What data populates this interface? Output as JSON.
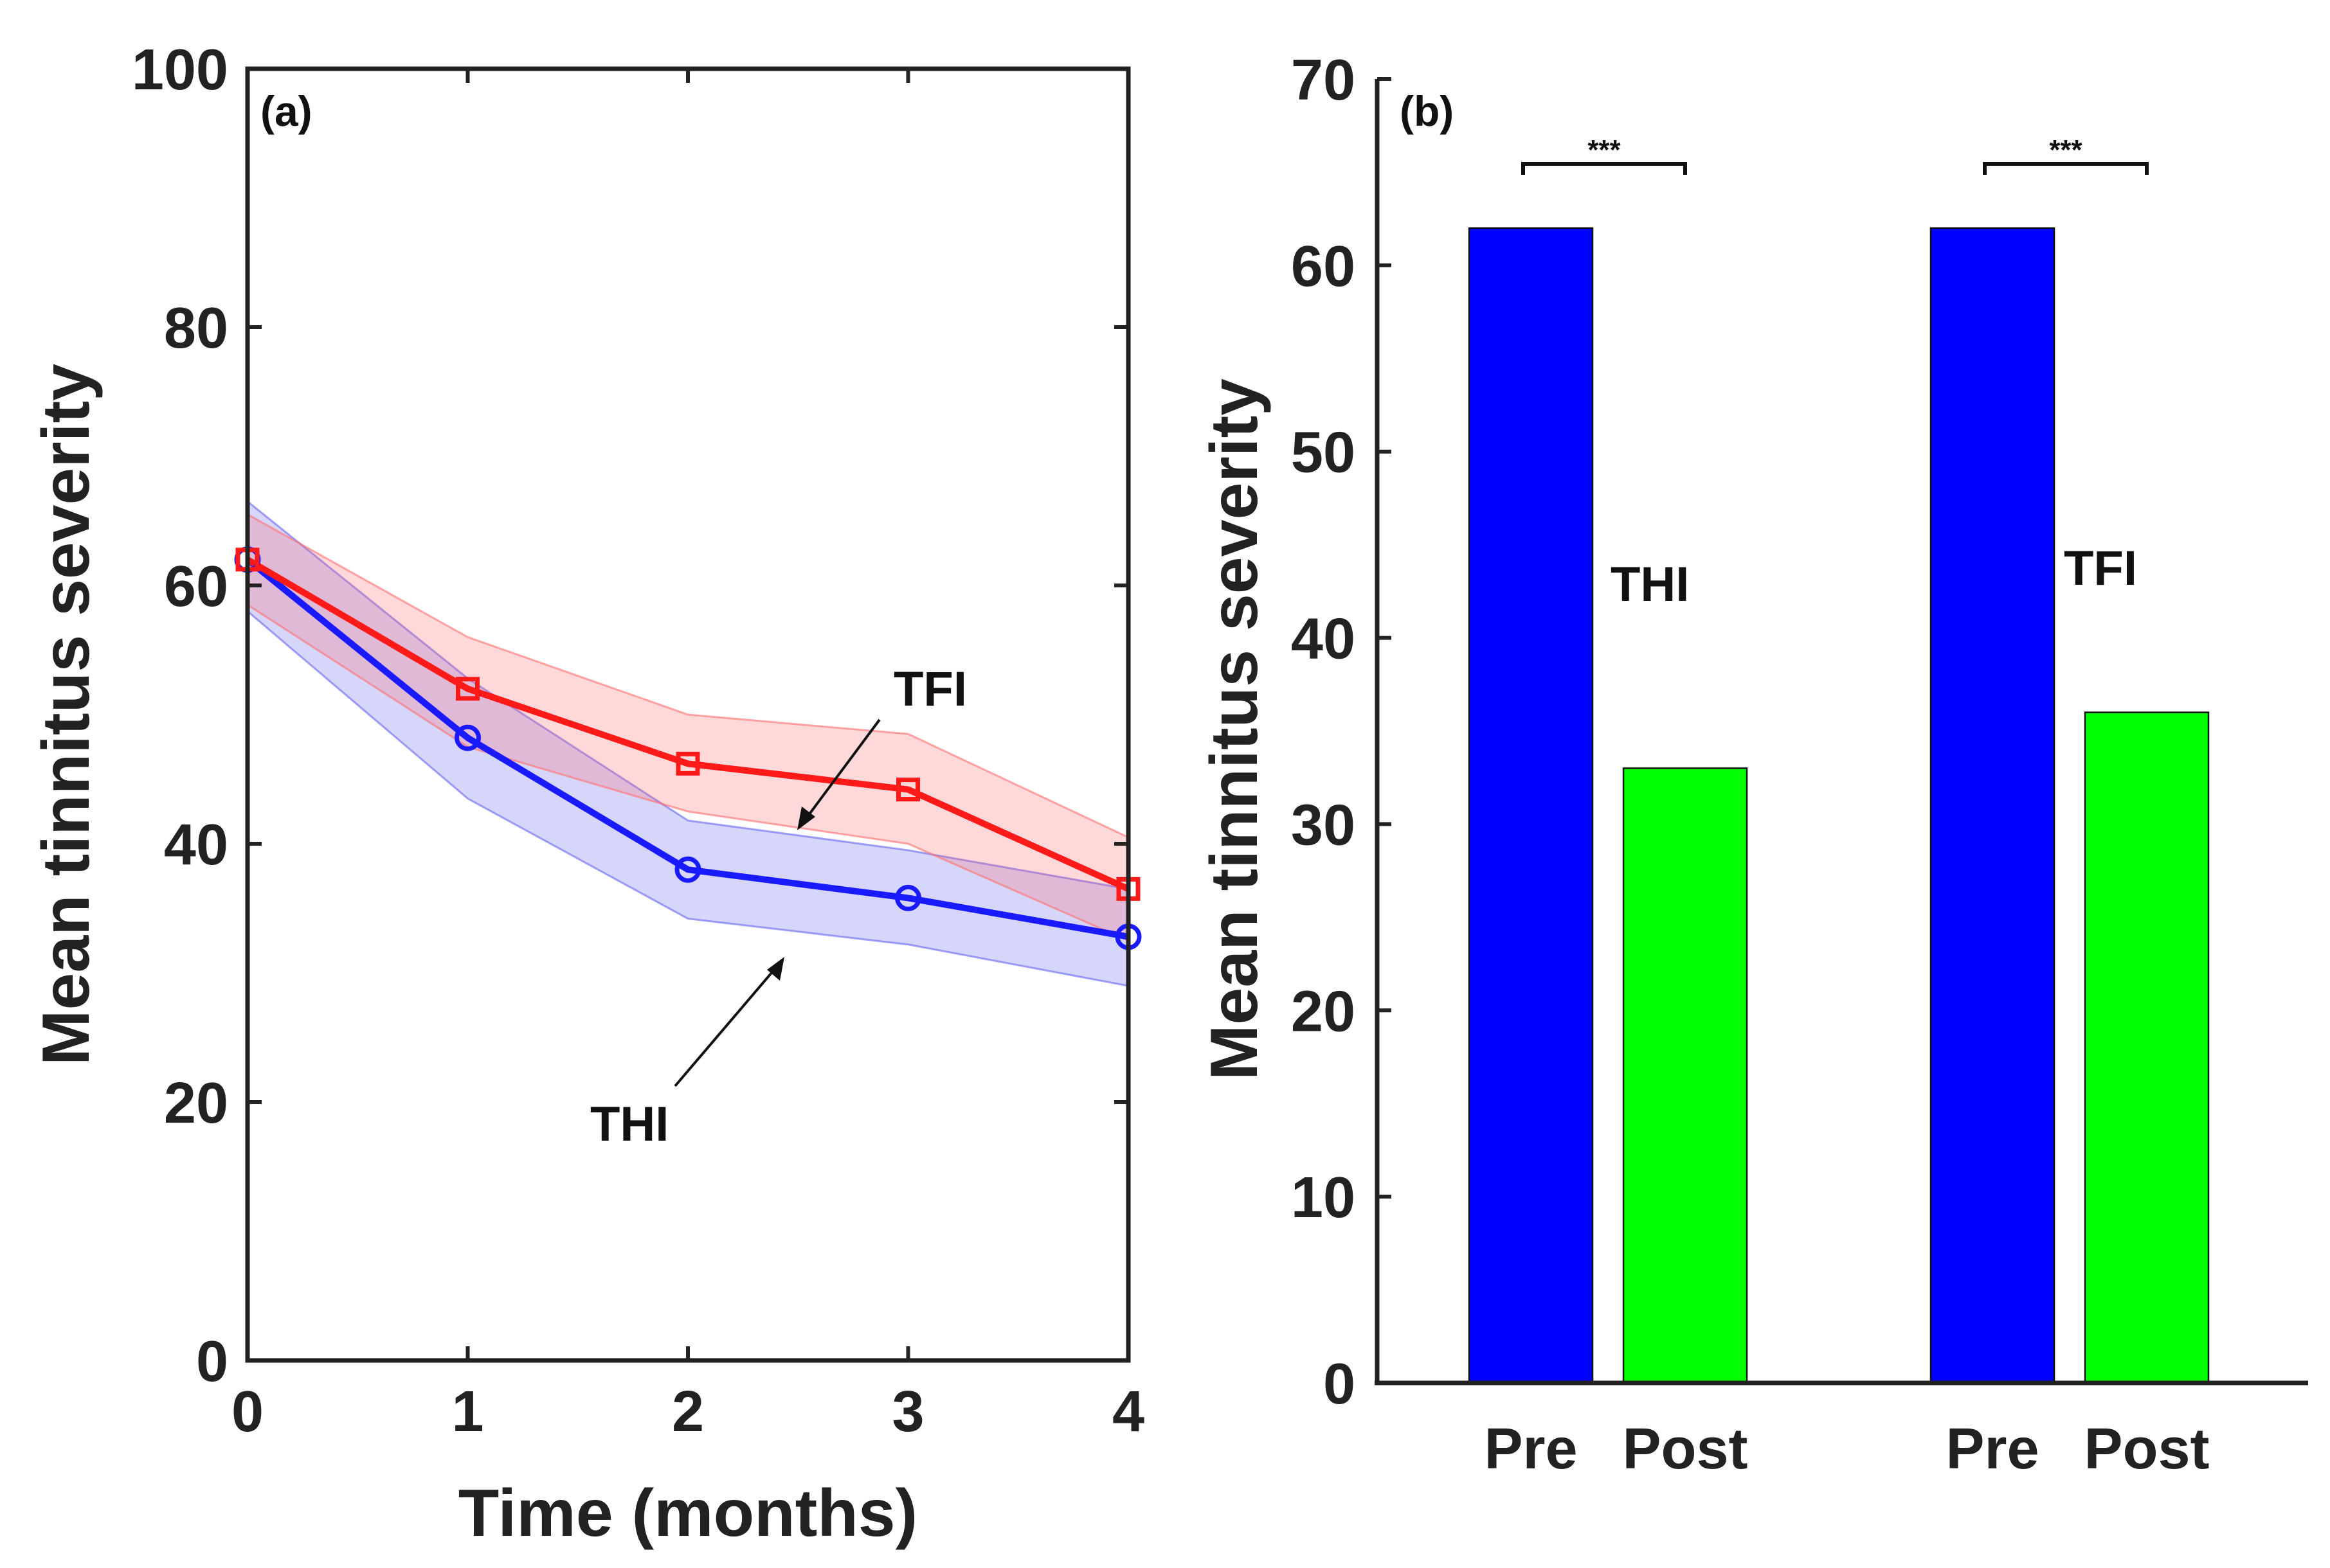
{
  "colors": {
    "thi": "#1a1aff",
    "tfi": "#ff1a1a",
    "pre": "#0000ff",
    "post": "#00ff00",
    "axis": "#222222"
  },
  "chart_data": [
    {
      "type": "line",
      "panel_label": "(a)",
      "xlabel": "Time (months)",
      "ylabel": "Mean tinnitus severity",
      "xlim": [
        0,
        4
      ],
      "ylim": [
        0,
        100
      ],
      "xticks": [
        "0",
        "1",
        "2",
        "3",
        "4"
      ],
      "yticks": [
        "0",
        "20",
        "40",
        "60",
        "80",
        "100"
      ],
      "x": [
        0,
        1,
        2,
        3,
        4
      ],
      "series": [
        {
          "name": "THI",
          "marker": "circle",
          "values": [
            62,
            48.2,
            38,
            35.8,
            32.8
          ],
          "lower": [
            58,
            43.5,
            34.2,
            32.2,
            29
          ],
          "upper": [
            66.5,
            52.8,
            41.8,
            39.5,
            36.5
          ]
        },
        {
          "name": "TFI",
          "marker": "square",
          "values": [
            62,
            52,
            46.2,
            44.2,
            36.5
          ],
          "lower": [
            58.5,
            47.5,
            42.5,
            40,
            32.5
          ],
          "upper": [
            65.5,
            56,
            50,
            48.5,
            40.5
          ]
        }
      ],
      "annotations": [
        {
          "text": "TFI",
          "target_series": "TFI"
        },
        {
          "text": "THI",
          "target_series": "THI"
        }
      ]
    },
    {
      "type": "bar",
      "panel_label": "(b)",
      "xlabel": "",
      "ylabel": "Mean tinnitus severity",
      "ylim": [
        0,
        70
      ],
      "yticks": [
        "0",
        "10",
        "20",
        "30",
        "40",
        "50",
        "60",
        "70"
      ],
      "categories": [
        "Pre",
        "Post",
        "Pre",
        "Post"
      ],
      "groups": [
        {
          "name": "THI",
          "pre": 62,
          "post": 33,
          "significance": "***"
        },
        {
          "name": "TFI",
          "pre": 62,
          "post": 36,
          "significance": "***"
        }
      ]
    }
  ]
}
